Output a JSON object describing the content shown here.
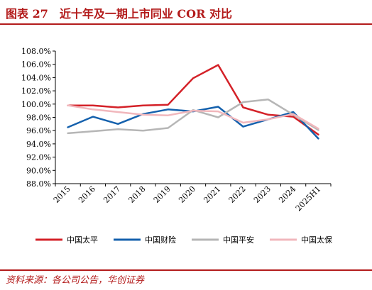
{
  "header": {
    "title": "图表 27　近十年及一期上市同业 COR 对比"
  },
  "footer": {
    "source": "资料来源：各公司公告，华创证券"
  },
  "colors": {
    "cpic": "#d42128",
    "china_life_pc": "#1561ad",
    "ping_an": "#b6b6b6",
    "taibao": "#f1b7bc"
  },
  "chart_data": {
    "type": "line",
    "categories": [
      "2015",
      "2016",
      "2017",
      "2018",
      "2019",
      "2020",
      "2021",
      "2022",
      "2023",
      "2024",
      "2025H1"
    ],
    "ylim": [
      88,
      108
    ],
    "ytick_step": 2,
    "ytick_format": "percent-1dp",
    "grid": false,
    "legend": "bottom",
    "series": [
      {
        "name": "中国太平",
        "color_key": "cpic",
        "values": [
          99.8,
          99.8,
          99.5,
          99.8,
          99.9,
          103.9,
          105.9,
          99.5,
          98.4,
          98.1,
          95.4
        ]
      },
      {
        "name": "中国财险",
        "color_key": "china_life_pc",
        "values": [
          96.5,
          98.1,
          97.0,
          98.5,
          99.2,
          98.9,
          99.6,
          96.6,
          97.7,
          98.8,
          94.8
        ]
      },
      {
        "name": "中国平安",
        "color_key": "ping_an",
        "values": [
          95.6,
          95.9,
          96.2,
          96.0,
          96.4,
          99.1,
          98.0,
          100.3,
          100.7,
          98.4,
          96.1
        ]
      },
      {
        "name": "中国太保",
        "color_key": "taibao",
        "values": [
          99.8,
          99.2,
          98.8,
          98.4,
          98.3,
          99.0,
          98.9,
          97.2,
          97.7,
          98.5,
          96.3
        ]
      }
    ]
  }
}
